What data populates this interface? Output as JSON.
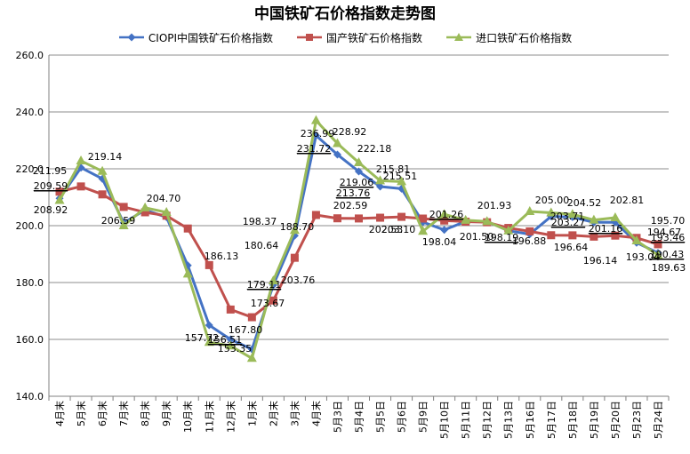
{
  "chart_data": {
    "type": "line",
    "title": "中国铁矿石价格指数走势图",
    "xlabel": "",
    "ylabel": "",
    "ylim": [
      140,
      260
    ],
    "yticks": [
      "140.0",
      "160.0",
      "180.0",
      "200.0",
      "220.0",
      "240.0",
      "260.0"
    ],
    "grid": "horizontal",
    "legend_position": "top",
    "categories": [
      "4月末",
      "5月末",
      "6月末",
      "7月末",
      "8月末",
      "9月末",
      "10月末",
      "11月末",
      "12月末",
      "1月末",
      "2月末",
      "3月末",
      "4月末",
      "5月3日",
      "5月4日",
      "5月5日",
      "5月6日",
      "5月9日",
      "5月10日",
      "5月11日",
      "5月12日",
      "5月13日",
      "5月16日",
      "5月17日",
      "5月18日",
      "5月19日",
      "5月20日",
      "5月23日",
      "5月24日"
    ],
    "series": [
      {
        "name": "CIOPI中国铁矿石价格指数",
        "color": "#4472C4",
        "marker": "diamond",
        "values": [
          209.59,
          220.4,
          216.5,
          201.0,
          205.5,
          203.0,
          186.0,
          165.0,
          160.0,
          156.51,
          179.11,
          196.5,
          231.72,
          225.0,
          219.06,
          213.76,
          213.0,
          201.26,
          198.5,
          201.5,
          201.5,
          198.19,
          197.0,
          203.27,
          203.0,
          201.16,
          201.2,
          194.0,
          190.43
        ]
      },
      {
        "name": "国产铁矿石价格指数",
        "color": "#C0504D",
        "marker": "square",
        "values": [
          211.95,
          213.8,
          211.0,
          206.59,
          204.7,
          203.5,
          199.0,
          186.13,
          170.5,
          167.8,
          173.67,
          188.7,
          203.76,
          202.59,
          202.53,
          202.8,
          203.1,
          202.5,
          201.8,
          201.4,
          201.2,
          199.2,
          198.0,
          196.64,
          196.6,
          196.14,
          196.5,
          195.7,
          193.46
        ]
      },
      {
        "name": "进口铁矿石价格指数",
        "color": "#9BBB59",
        "marker": "triangle",
        "values": [
          208.92,
          222.8,
          219.14,
          200.0,
          206.3,
          204.7,
          183.0,
          159.0,
          157.72,
          153.35,
          180.64,
          198.37,
          236.99,
          228.92,
          222.18,
          215.81,
          215.51,
          198.04,
          204.0,
          201.93,
          201.5,
          198.19,
          205.0,
          204.52,
          204.0,
          202.0,
          202.81,
          194.67,
          189.63
        ]
      }
    ],
    "annotations": [
      {
        "text": "209.59",
        "underline": true
      },
      {
        "text": "211.95",
        "underline": false
      },
      {
        "text": "208.92",
        "underline": false
      },
      {
        "text": "219.14",
        "underline": false
      },
      {
        "text": "206.59",
        "underline": false
      },
      {
        "text": "204.70",
        "underline": false
      },
      {
        "text": "186.13",
        "underline": false
      },
      {
        "text": "167.80",
        "underline": false
      },
      {
        "text": "157.72",
        "underline": false
      },
      {
        "text": "156.51",
        "underline": true
      },
      {
        "text": "153.35",
        "underline": false
      },
      {
        "text": "180.64",
        "underline": false
      },
      {
        "text": "179.11",
        "underline": true
      },
      {
        "text": "173.67",
        "underline": false
      },
      {
        "text": "198.37",
        "underline": false
      },
      {
        "text": "188.70",
        "underline": false
      },
      {
        "text": "203.76",
        "underline": false
      },
      {
        "text": "236.99",
        "underline": false
      },
      {
        "text": "231.72",
        "underline": true
      },
      {
        "text": "228.92",
        "underline": false
      },
      {
        "text": "202.59",
        "underline": false
      },
      {
        "text": "222.18",
        "underline": false
      },
      {
        "text": "219.06",
        "underline": true
      },
      {
        "text": "213.76",
        "underline": true
      },
      {
        "text": "202.53",
        "underline": false
      },
      {
        "text": "215.81",
        "underline": false
      },
      {
        "text": "215.51",
        "underline": false
      },
      {
        "text": "203.10",
        "underline": false
      },
      {
        "text": "201.26",
        "underline": true
      },
      {
        "text": "198.04",
        "underline": false
      },
      {
        "text": "201.50",
        "underline": false
      },
      {
        "text": "201.93",
        "underline": false
      },
      {
        "text": "198.19",
        "underline": true
      },
      {
        "text": "205.00",
        "underline": false
      },
      {
        "text": "203.71",
        "underline": false
      },
      {
        "text": "196.88",
        "underline": false
      },
      {
        "text": "204.52",
        "underline": false
      },
      {
        "text": "203.27",
        "underline": true
      },
      {
        "text": "196.64",
        "underline": false
      },
      {
        "text": "201.16",
        "underline": true
      },
      {
        "text": "196.14",
        "underline": false
      },
      {
        "text": "202.81",
        "underline": false
      },
      {
        "text": "193.04",
        "underline": false
      },
      {
        "text": "195.70",
        "underline": false
      },
      {
        "text": "194.67",
        "underline": false
      },
      {
        "text": "193.46",
        "underline": true
      },
      {
        "text": "190.43",
        "underline": true
      },
      {
        "text": "189.63",
        "underline": false
      }
    ]
  }
}
